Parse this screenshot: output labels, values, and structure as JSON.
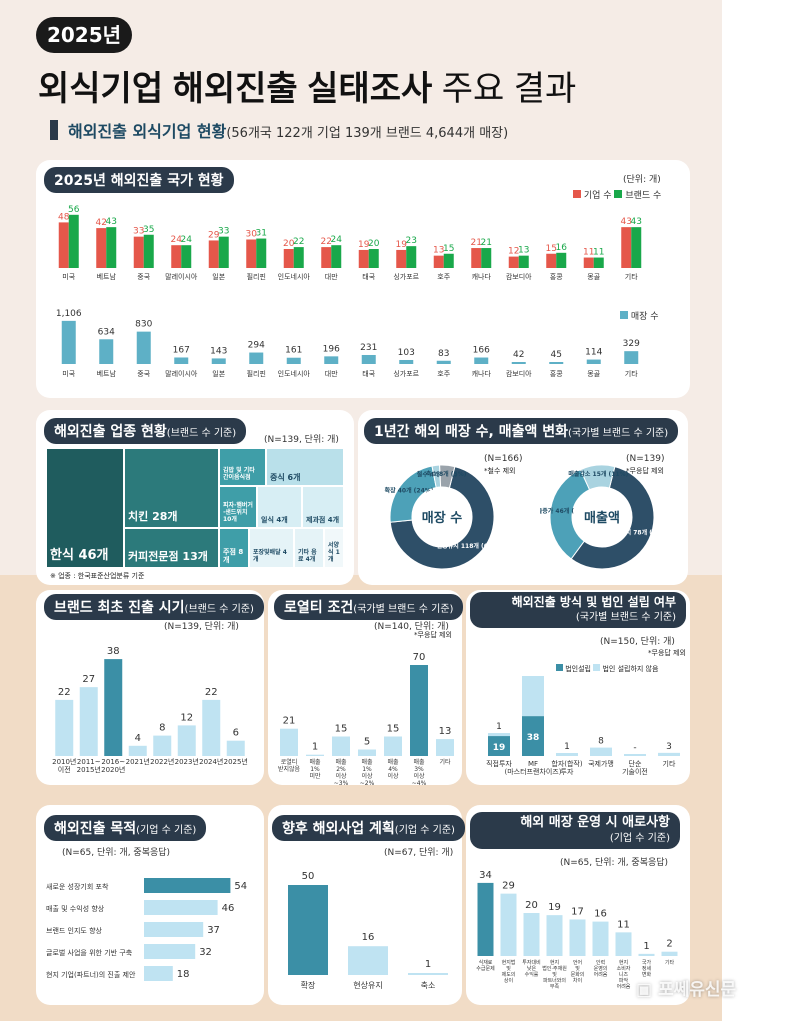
{
  "header": {
    "year_badge": "2025년",
    "title_bold": "외식기업 해외진출 실태조사",
    "title_rest": " 주요 결과",
    "subtitle_bold": "해외진출 외식기업 현황",
    "subtitle_rest": "(56개국 122개 기업 139개 브랜드 4,644개 매장)"
  },
  "colors": {
    "dark": "#2b3a4a",
    "red": "#e5574a",
    "green": "#19a84a",
    "blue": "#5eb0c6",
    "teal": "#3b8fa6",
    "light_blue": "#bfe3f2",
    "navy": "#1e4a63"
  },
  "sections": {
    "country": {
      "title": "2025년 해외진출 국가 현황",
      "unit": "(단위: 개)",
      "legend_company": "기업 수",
      "legend_brand": "브랜드 수",
      "legend_store": "매장 수"
    },
    "industry": {
      "title": "해외진출 업종 현황",
      "title_sub": "(브랜드 수 기준)",
      "n_unit": "(N=139, 단위: 개)",
      "footnote": "※ 업종 : 한국표준산업분류 기준"
    },
    "store_change": {
      "title": "1년간 해외 매장 수, 매출액 변화",
      "title_sub": "(국가별 브랜드 수 기준)",
      "n1": "(N=166)",
      "n1_note": "*철수 제외",
      "n2": "(N=139)",
      "n2_note": "*무응답 제외"
    },
    "first_entry": {
      "title": "브랜드 최초 진출 시기",
      "title_sub": "(브랜드 수 기준)",
      "n_unit": "(N=139, 단위: 개)"
    },
    "royalty": {
      "title": "로열티 조건",
      "title_sub": "(국가별 브랜드 수 기준)",
      "n_unit": "(N=140, 단위: 개)",
      "note": "*무응답 제외"
    },
    "method": {
      "title": "해외진출 방식 및 법인 설립 여부",
      "title_sub": "(국가별 브랜드 수 기준)",
      "n_unit": "(N=150, 단위: 개)",
      "note": "*무응답 제외",
      "legend_a": "법인설립",
      "legend_b": "법인 설립하지 않음"
    },
    "purpose": {
      "title": "해외진출 목적",
      "title_sub": "(기업 수 기준)",
      "n_unit": "(N=65, 단위: 개, 중복응답)"
    },
    "plan": {
      "title": "향후 해외사업 계획",
      "title_sub": "(기업 수 기준)",
      "n_unit": "(N=67, 단위: 개)"
    },
    "difficulty": {
      "title": "해외 매장 운영 시 애로사항",
      "title_sub": "(기업 수 기준)",
      "n_unit": "(N=65, 단위: 개, 중복응답)"
    }
  },
  "watermark": "포쎄유신문",
  "chart_data": [
    {
      "type": "bar",
      "name": "country_company_brand",
      "categories": [
        "미국",
        "베트남",
        "중국",
        "말레이시아",
        "일본",
        "필리핀",
        "인도네시아",
        "대만",
        "태국",
        "싱가포르",
        "호주",
        "캐나다",
        "캄보디아",
        "홍콩",
        "몽골",
        "기타"
      ],
      "series": [
        {
          "name": "기업 수",
          "values": [
            48,
            42,
            33,
            24,
            29,
            30,
            20,
            22,
            19,
            19,
            13,
            21,
            12,
            15,
            11,
            43
          ]
        },
        {
          "name": "브랜드 수",
          "values": [
            56,
            43,
            35,
            24,
            33,
            31,
            22,
            24,
            20,
            23,
            15,
            21,
            13,
            16,
            11,
            43
          ]
        }
      ]
    },
    {
      "type": "bar",
      "name": "country_stores",
      "categories": [
        "미국",
        "베트남",
        "중국",
        "말레이시아",
        "일본",
        "필리핀",
        "인도네시아",
        "대만",
        "태국",
        "싱가포르",
        "호주",
        "캐나다",
        "캄보디아",
        "홍콩",
        "몽골",
        "기타"
      ],
      "series": [
        {
          "name": "매장 수",
          "values": [
            1106,
            634,
            830,
            167,
            143,
            294,
            161,
            196,
            231,
            103,
            83,
            166,
            42,
            45,
            114,
            329
          ]
        }
      ]
    },
    {
      "type": "heatmap",
      "name": "industry_treemap",
      "categories": [
        "한식",
        "치킨",
        "커피전문점",
        "김밥 및 기타 간이음식점",
        "피자·햄버거·샌드위치 및 유사음식점",
        "중식",
        "일식",
        "제과점",
        "주점",
        "분식",
        "포장및배달 판매점",
        "기타 음료",
        "서양식"
      ],
      "values": [
        46,
        28,
        13,
        null,
        10,
        6,
        4,
        4,
        8,
        null,
        4,
        4,
        1
      ]
    },
    {
      "type": "pie",
      "name": "store_count_change",
      "center": "매장 수",
      "labels": [
        "현상유지",
        "확장",
        "철수",
        "축소"
      ],
      "values": [
        118,
        40,
        4,
        8
      ],
      "percents": [
        69,
        24,
        2,
        5
      ]
    },
    {
      "type": "pie",
      "name": "sales_change",
      "center": "매출액",
      "labels": [
        "현상유지",
        "매출증가",
        "매출감소"
      ],
      "values": [
        78,
        46,
        15
      ],
      "percents": [
        56,
        33,
        11
      ]
    },
    {
      "type": "bar",
      "name": "first_entry",
      "categories": [
        "2010년 이전",
        "2011~ 2015년",
        "2016~ 2020년",
        "2021년",
        "2022년",
        "2023년",
        "2024년",
        "2025년"
      ],
      "values": [
        22,
        27,
        38,
        4,
        8,
        12,
        22,
        6
      ]
    },
    {
      "type": "bar",
      "name": "royalty",
      "categories": [
        "로열티 받지않음",
        "매출 1% 미만",
        "매출 2% 이상 ~3% 미만",
        "매출 1% 이상 ~2% 미만",
        "매출 4% 이상",
        "매출 3% 이상 ~4% 미만",
        "기타"
      ],
      "values": [
        21,
        1,
        15,
        5,
        15,
        70,
        13
      ]
    },
    {
      "type": "bar",
      "name": "entry_method",
      "categories": [
        "직접투자",
        "MF (마스터프랜차이즈)",
        "합자(합작) 투자",
        "국제가맹",
        "단순 기술이전",
        "기타"
      ],
      "series": [
        {
          "name": "법인설립",
          "values": [
            19,
            38,
            null,
            null,
            null,
            null
          ]
        },
        {
          "name": "법인 설립하지 않음",
          "values": [
            1,
            68,
            1,
            8,
            0,
            3
          ]
        }
      ]
    },
    {
      "type": "bar",
      "name": "purpose",
      "categories": [
        "새로운 성장기회 포착",
        "매출 및 수익성 향상",
        "브랜드 인지도 향상",
        "글로벌 사업을 위한 기반 구축",
        "현지 기업(파트너)의 진출 제안"
      ],
      "values": [
        54,
        46,
        37,
        32,
        18
      ]
    },
    {
      "type": "bar",
      "name": "plan",
      "categories": [
        "확장",
        "현상유지",
        "축소"
      ],
      "values": [
        50,
        16,
        1
      ]
    },
    {
      "type": "bar",
      "name": "difficulty",
      "categories": [
        "식재료 수급문제",
        "현지법 및 제도의 상이",
        "투자대비 낮은 수익률",
        "현지 법인·주재원 및 파트너와의 부족",
        "언어 및 문화의 차이",
        "인력 운영의 어려움",
        "현지 소비자 니즈 파악 어려움",
        "국가 정세 변화",
        "기타"
      ],
      "values": [
        34,
        29,
        20,
        19,
        17,
        16,
        11,
        1,
        2
      ]
    }
  ]
}
